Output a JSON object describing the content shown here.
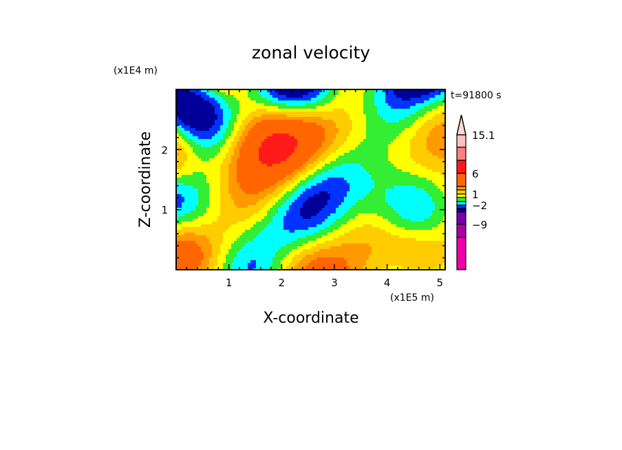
{
  "chart_data": {
    "type": "contour",
    "title": "zonal velocity",
    "xlabel": "X-coordinate",
    "ylabel": "Z-coordinate",
    "x_unit": "(x1E5 m)",
    "y_unit": "(x1E4 m)",
    "time_label": "t=91800 s",
    "xlim": [
      0,
      5.1
    ],
    "ylim": [
      0,
      3.0
    ],
    "xticks": [
      "1",
      "2",
      "3",
      "4",
      "5"
    ],
    "yticks": [
      "1",
      "2"
    ],
    "levels": [
      15.1,
      12,
      9,
      6,
      3,
      2,
      1,
      0,
      -1,
      -2,
      -3,
      -6,
      -9,
      -12,
      -15
    ],
    "colors": [
      "#ffc0c0",
      "#ff8080",
      "#ff1a1a",
      "#ff6600",
      "#ff9900",
      "#ffcc00",
      "#ffff00",
      "#33ee33",
      "#00ffff",
      "#0033ff",
      "#000099",
      "#7700aa",
      "#aa00aa",
      "#ee00aa"
    ],
    "over_color": "#ffd8d8",
    "colorbar_labels": [
      "15.1",
      "6",
      "1",
      "-2",
      "-9"
    ],
    "grid": false
  }
}
